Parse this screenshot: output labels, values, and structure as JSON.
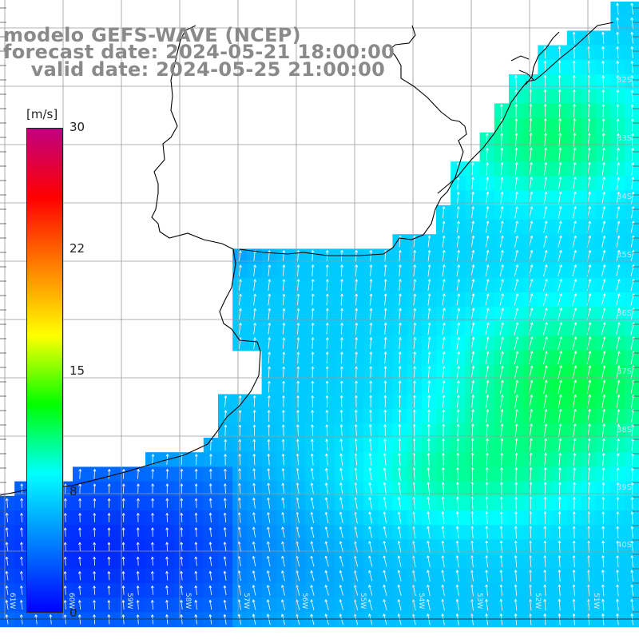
{
  "title": {
    "line1": "modelo GEFS-WAVE (NCEP)",
    "line2": "forecast date: 2024-05-21 18:00:00",
    "line3": "    valid date: 2024-05-25 21:00:00"
  },
  "colorbar": {
    "unit": "[m/s]",
    "ticks": [
      "30",
      "22",
      "15",
      "8",
      "0"
    ],
    "tick_values": [
      30,
      22,
      15,
      8,
      0
    ],
    "range": [
      0,
      30
    ],
    "colors": [
      "#0000ff",
      "#0080ff",
      "#00ffff",
      "#00ff00",
      "#ffff00",
      "#ff8000",
      "#ff0000",
      "#c00080"
    ]
  },
  "map": {
    "field": "wind speed",
    "arrow_color": "#ffffff",
    "land_color": "#ffffff",
    "coast_color": "#000000",
    "grid_color": "#9a9a9a",
    "lat_labels": [
      "32S",
      "33S",
      "34S",
      "35S",
      "36S",
      "37S",
      "38S",
      "39S",
      "40S"
    ],
    "lon_labels": [
      "61W",
      "60W",
      "59W",
      "58W",
      "57W",
      "56W",
      "55W",
      "54W",
      "53W",
      "52W",
      "51W"
    ]
  }
}
